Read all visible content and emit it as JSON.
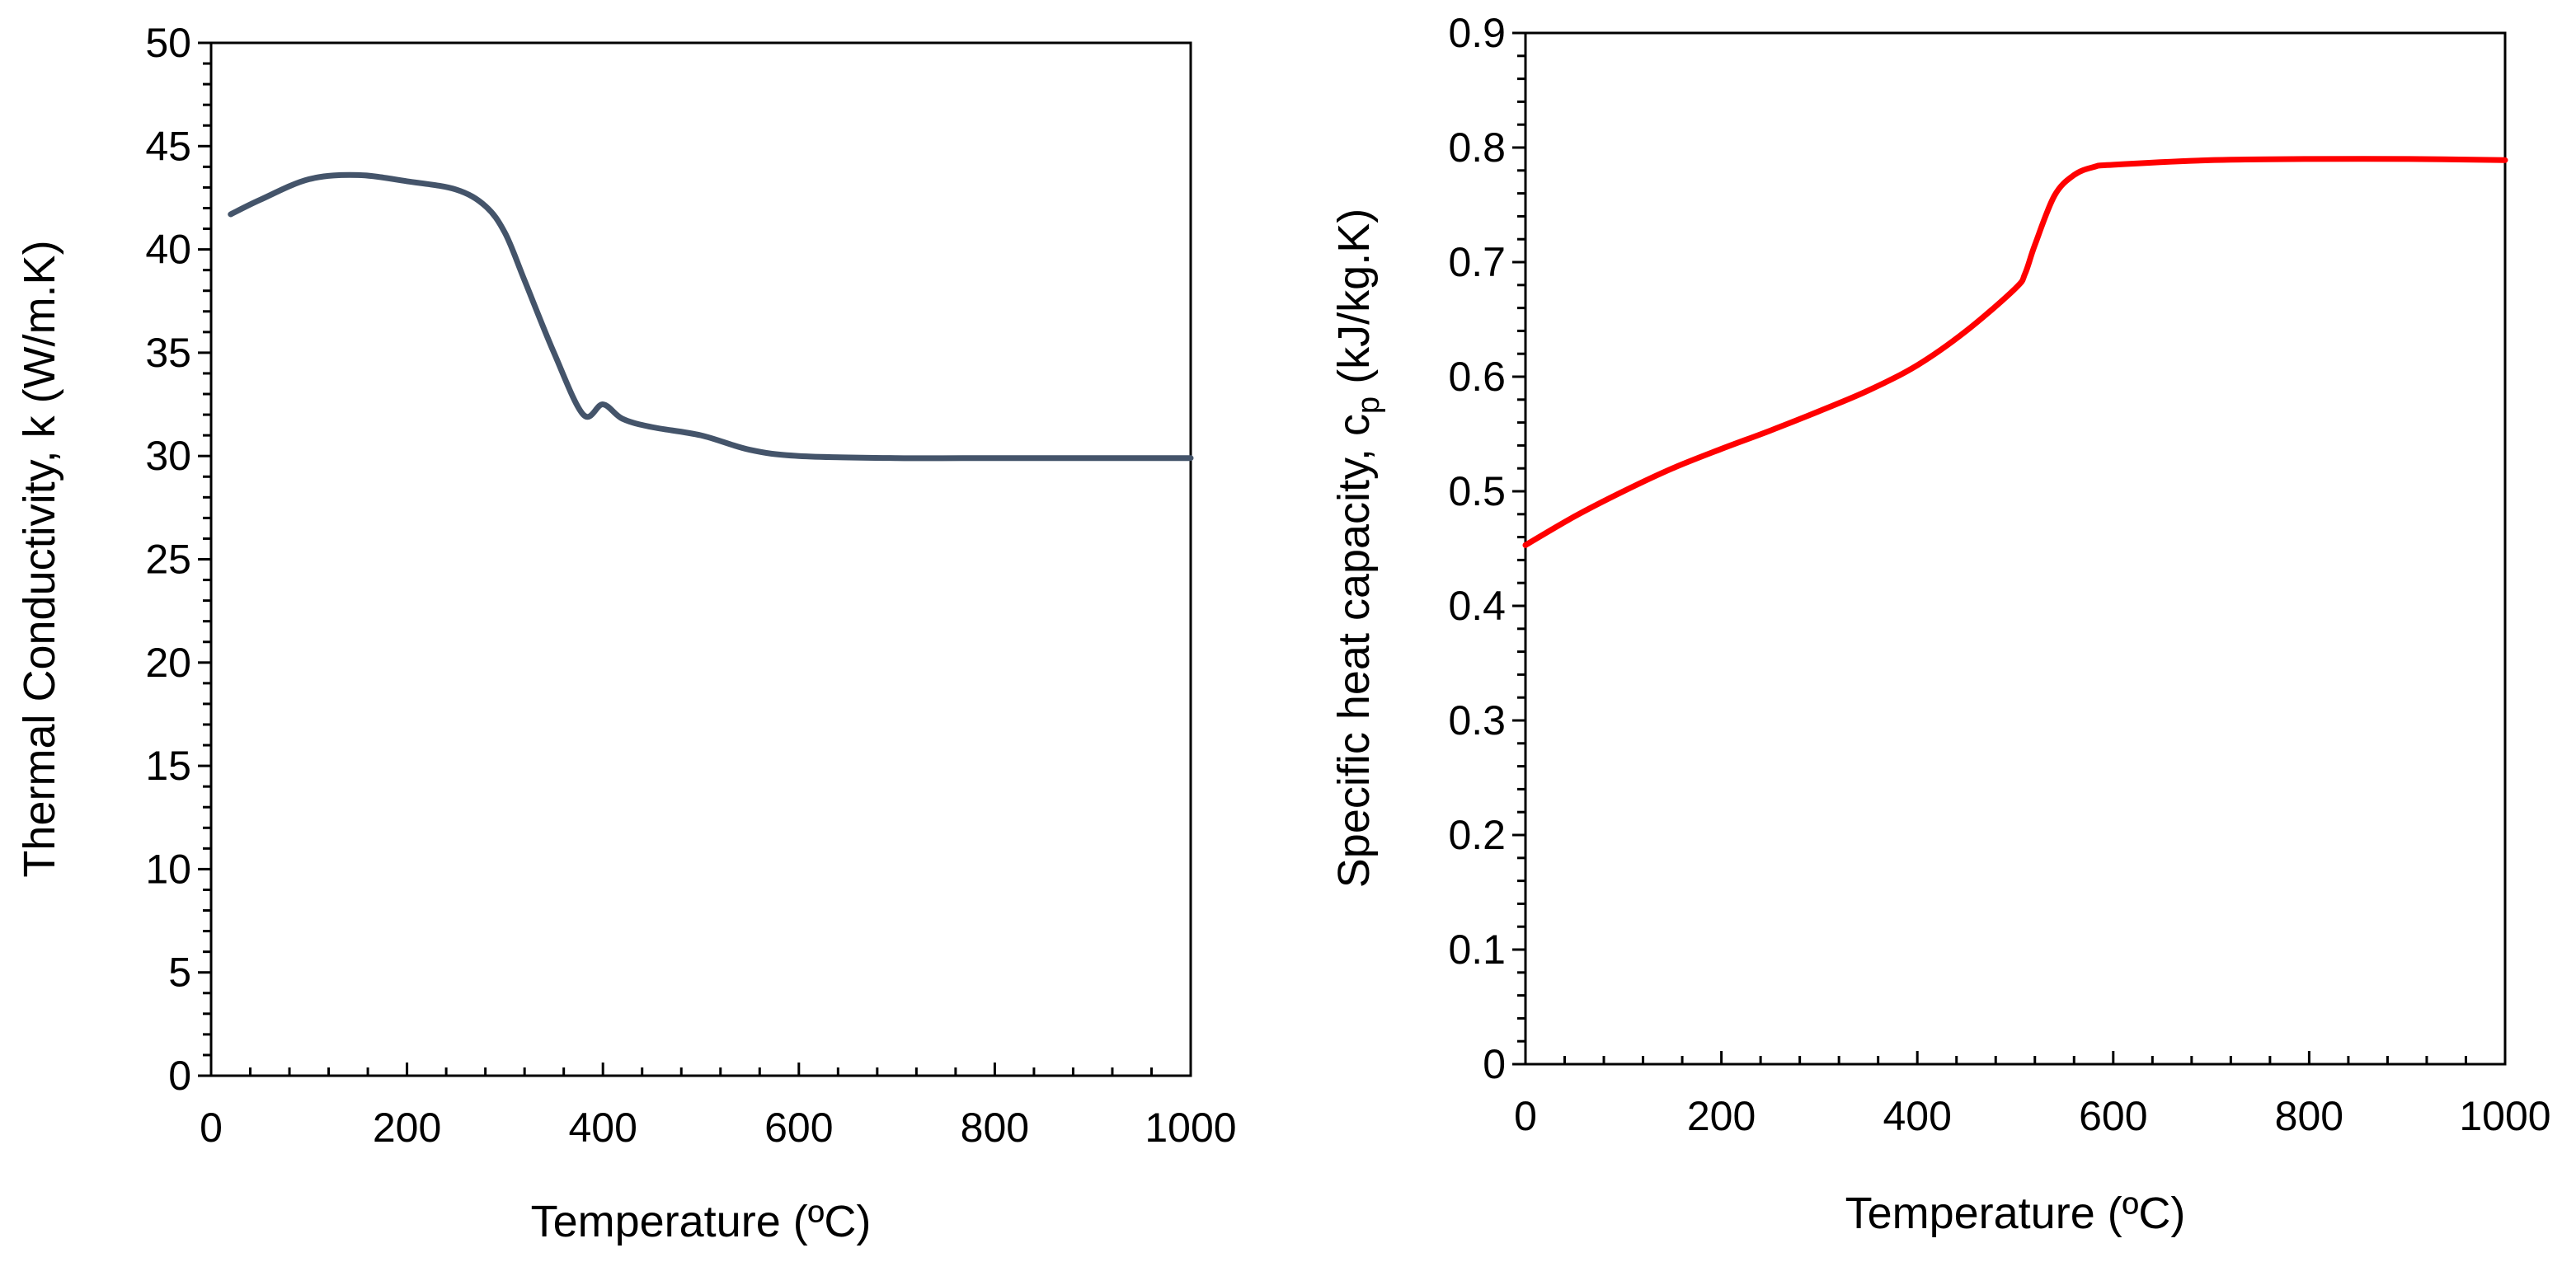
{
  "chart_data": [
    {
      "type": "line",
      "xlabel": "Temperature (ºC)",
      "ylabel": "Thermal Conductivity, k  (W/m.K)",
      "xlim": [
        0,
        1000
      ],
      "ylim": [
        0,
        50
      ],
      "xticks": [
        "0",
        "200",
        "400",
        "600",
        "800",
        "1000"
      ],
      "yticks": [
        "0",
        "5",
        "10",
        "15",
        "20",
        "25",
        "30",
        "35",
        "40",
        "45",
        "50"
      ],
      "grid": false,
      "series": [
        {
          "color": "#44546a",
          "x": [
            20,
            50,
            100,
            150,
            200,
            250,
            280,
            300,
            320,
            350,
            380,
            400,
            420,
            450,
            500,
            550,
            600,
            700,
            800,
            900,
            1000
          ],
          "y": [
            41.7,
            42.4,
            43.4,
            43.6,
            43.3,
            42.9,
            42.1,
            40.8,
            38.5,
            35.0,
            32.0,
            32.5,
            31.8,
            31.4,
            31.0,
            30.3,
            30.0,
            29.9,
            29.9,
            29.9,
            29.9
          ]
        }
      ]
    },
    {
      "type": "line",
      "xlabel": "Temperature (ºC)",
      "ylabel": "Specific heat capacity, cp (kJ/kg.K)",
      "ylabel_main": "Specific heat capacity, c",
      "ylabel_sub": "p",
      "ylabel_tail": " (kJ/kg.K)",
      "xlim": [
        0,
        1000
      ],
      "ylim": [
        0,
        0.9
      ],
      "xticks": [
        "0",
        "200",
        "400",
        "600",
        "800",
        "1000"
      ],
      "yticks": [
        "0",
        "0.1",
        "0.2",
        "0.3",
        "0.4",
        "0.5",
        "0.6",
        "0.7",
        "0.8",
        "0.9"
      ],
      "grid": false,
      "series": [
        {
          "color": "#ff0000",
          "x": [
            0,
            50,
            100,
            150,
            200,
            250,
            300,
            350,
            400,
            450,
            500,
            510,
            520,
            540,
            560,
            580,
            600,
            700,
            800,
            900,
            1000
          ],
          "y": [
            0.453,
            0.478,
            0.5,
            0.52,
            0.537,
            0.553,
            0.57,
            0.588,
            0.61,
            0.64,
            0.677,
            0.69,
            0.715,
            0.758,
            0.776,
            0.783,
            0.785,
            0.789,
            0.79,
            0.79,
            0.789
          ]
        }
      ]
    }
  ]
}
